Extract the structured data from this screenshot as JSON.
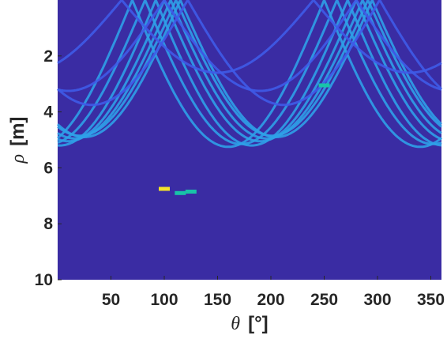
{
  "chart_data": {
    "type": "heatmap",
    "title": "",
    "xlabel_symbol": "θ",
    "xlabel_unit": "[°]",
    "ylabel_symbol": "ρ",
    "ylabel_unit": "[m]",
    "xlim": [
      0,
      360
    ],
    "ylim": [
      10,
      0
    ],
    "y_reversed": true,
    "xticks": [
      50,
      100,
      150,
      200,
      250,
      300,
      350
    ],
    "xtick_labels": [
      "50",
      "100",
      "150",
      "200",
      "250",
      "300",
      "350"
    ],
    "yticks": [
      2,
      4,
      6,
      8,
      10
    ],
    "ytick_labels": [
      "2",
      "4",
      "6",
      "8",
      "10"
    ],
    "colormap": "parula",
    "colors": {
      "background": "#3A2CA3",
      "low": "#3F5BE8",
      "mid": "#2FA0E8",
      "high": "#18C4A8",
      "peak": "#F4E32A"
    },
    "curves": [
      {
        "rho": 5.25,
        "phase": 160,
        "level": 0.55
      },
      {
        "rho": 5.15,
        "phase": 172,
        "level": 0.5
      },
      {
        "rho": 5.2,
        "phase": 182,
        "level": 0.45
      },
      {
        "rho": 5.05,
        "phase": 190,
        "level": 0.45
      },
      {
        "rho": 4.95,
        "phase": 196,
        "level": 0.45
      },
      {
        "rho": 4.85,
        "phase": 201,
        "level": 0.5
      },
      {
        "rho": 4.9,
        "phase": 205,
        "level": 0.5
      },
      {
        "rho": 3.75,
        "phase": 212,
        "level": 0.22
      },
      {
        "rho": 3.25,
        "phase": 190,
        "level": 0.2
      },
      {
        "rho": 2.6,
        "phase": 150,
        "level": 0.2
      }
    ],
    "peaks": [
      {
        "x": 100,
        "y": 6.75,
        "level": 1.0
      },
      {
        "x": 115,
        "y": 6.9,
        "level": 0.85
      },
      {
        "x": 125,
        "y": 6.85,
        "level": 0.8
      },
      {
        "x": 250,
        "y": 3.05,
        "level": 0.7
      }
    ]
  }
}
